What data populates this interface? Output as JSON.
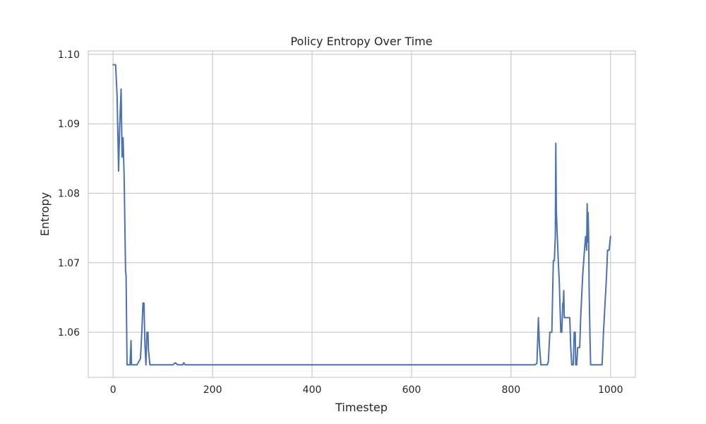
{
  "chart_data": {
    "type": "line",
    "title": "Policy Entropy Over Time",
    "xlabel": "Timestep",
    "ylabel": "Entropy",
    "xlim": [
      -50,
      1050
    ],
    "ylim": [
      1.0535,
      1.1005
    ],
    "xticks": [
      0,
      200,
      400,
      600,
      800,
      1000
    ],
    "yticks": [
      1.06,
      1.07,
      1.08,
      1.09,
      1.1
    ],
    "xtick_labels": [
      "0",
      "200",
      "400",
      "600",
      "800",
      "1000"
    ],
    "ytick_labels": [
      "1.06",
      "1.07",
      "1.08",
      "1.09",
      "1.10"
    ],
    "grid": true,
    "colors": {
      "line": "#4c72b0",
      "grid": "#cccccc",
      "frame": "#cccccc"
    },
    "series": [
      {
        "x": [
          0,
          5,
          8,
          11,
          13,
          16,
          18,
          20,
          22,
          23,
          25,
          26,
          28,
          30,
          34,
          36,
          37,
          40,
          48,
          55,
          58,
          60,
          62,
          64,
          66,
          68,
          70,
          71,
          74,
          120,
          125,
          130,
          140,
          142,
          145,
          200,
          400,
          600,
          800,
          848,
          852,
          855,
          857,
          860,
          865,
          870,
          873,
          875,
          878,
          882,
          885,
          887,
          889,
          890,
          891,
          893,
          895,
          897,
          900,
          902,
          904,
          905,
          906,
          907,
          909,
          912,
          915,
          918,
          920,
          922,
          925,
          927,
          929,
          930,
          932,
          934,
          936,
          938,
          940,
          944,
          948,
          950,
          952,
          953,
          954,
          955,
          956,
          957,
          958,
          959,
          960,
          962,
          965,
          968,
          972,
          978,
          983,
          986,
          989,
          992,
          994,
          997,
          1000
        ],
        "values": [
          1.0985,
          1.0985,
          1.094,
          1.0832,
          1.0892,
          1.095,
          1.0852,
          1.088,
          1.0828,
          1.0785,
          1.0688,
          1.0682,
          1.0553,
          1.0553,
          1.0553,
          1.0588,
          1.0553,
          1.0553,
          1.0553,
          1.0562,
          1.0605,
          1.0642,
          1.0642,
          1.0582,
          1.0553,
          1.06,
          1.06,
          1.0575,
          1.0553,
          1.0553,
          1.0556,
          1.0553,
          1.0553,
          1.0556,
          1.0553,
          1.0553,
          1.0553,
          1.0553,
          1.0553,
          1.0553,
          1.0555,
          1.0621,
          1.0582,
          1.0553,
          1.0553,
          1.0553,
          1.0553,
          1.0558,
          1.06,
          1.06,
          1.0703,
          1.0703,
          1.0738,
          1.0872,
          1.0775,
          1.0738,
          1.0702,
          1.0672,
          1.06,
          1.06,
          1.0642,
          1.0642,
          1.066,
          1.0621,
          1.0621,
          1.0621,
          1.0621,
          1.0621,
          1.0578,
          1.0553,
          1.0553,
          1.06,
          1.06,
          1.0553,
          1.0553,
          1.0578,
          1.0578,
          1.0578,
          1.0621,
          1.0682,
          1.0722,
          1.0738,
          1.0718,
          1.0785,
          1.073,
          1.0772,
          1.0738,
          1.066,
          1.0621,
          1.0582,
          1.0553,
          1.0553,
          1.0553,
          1.0553,
          1.0553,
          1.0553,
          1.0553,
          1.0602,
          1.0642,
          1.0682,
          1.0718,
          1.0718,
          1.0738
        ]
      }
    ]
  }
}
